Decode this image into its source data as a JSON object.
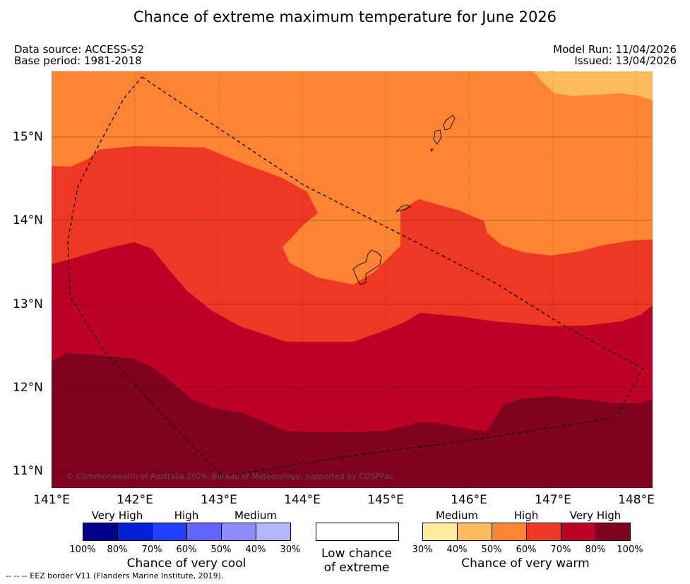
{
  "title": "Chance of extreme maximum temperature for June 2026",
  "data_source": "Data source: ACCESS-S2",
  "base_period": "Base period: 1981-2018",
  "model_run": "Model Run: 11/04/2026",
  "issued": "Issued: 13/04/2026",
  "copyright": "© Commonwealth of Australia 2026, Bureau of Meteorology, supported by COSPPac",
  "x_ticks": [
    "141°E",
    "142°E",
    "143°E",
    "144°E",
    "145°E",
    "146°E",
    "147°E",
    "148°E"
  ],
  "y_ticks": [
    "15°N",
    "14°N",
    "13°N",
    "12°N",
    "11°N"
  ],
  "legend": {
    "cool": {
      "categories": [
        "Very High",
        "High",
        "Medium"
      ],
      "percents": [
        "100%",
        "80%",
        "70%",
        "60%",
        "50%",
        "40%",
        "30%"
      ],
      "colors": [
        "#00008c",
        "#0020d6",
        "#2040ff",
        "#6464ff",
        "#8c8cff",
        "#b4b4ff"
      ],
      "caption": "Chance of very cool"
    },
    "low": {
      "line1": "Low chance",
      "line2": "of extreme",
      "color": "#ffffff"
    },
    "warm": {
      "categories": [
        "Medium",
        "High",
        "Very High"
      ],
      "percents": [
        "30%",
        "40%",
        "50%",
        "60%",
        "70%",
        "80%",
        "100%"
      ],
      "colors": [
        "#ffeb9c",
        "#fdbb5b",
        "#fd8433",
        "#ee3823",
        "#be0026",
        "#80001f"
      ],
      "caption": "Chance of very warm"
    }
  },
  "eez_note": "-- -- -- EEZ border V11 (Flanders Marine Institute, 2019).",
  "map_colors": {
    "band_50_60": "#fd8433",
    "band_40_50": "#fdbb5b",
    "band_60_70": "#ee3823",
    "band_70_80": "#be0026",
    "band_80_100": "#80001f"
  }
}
